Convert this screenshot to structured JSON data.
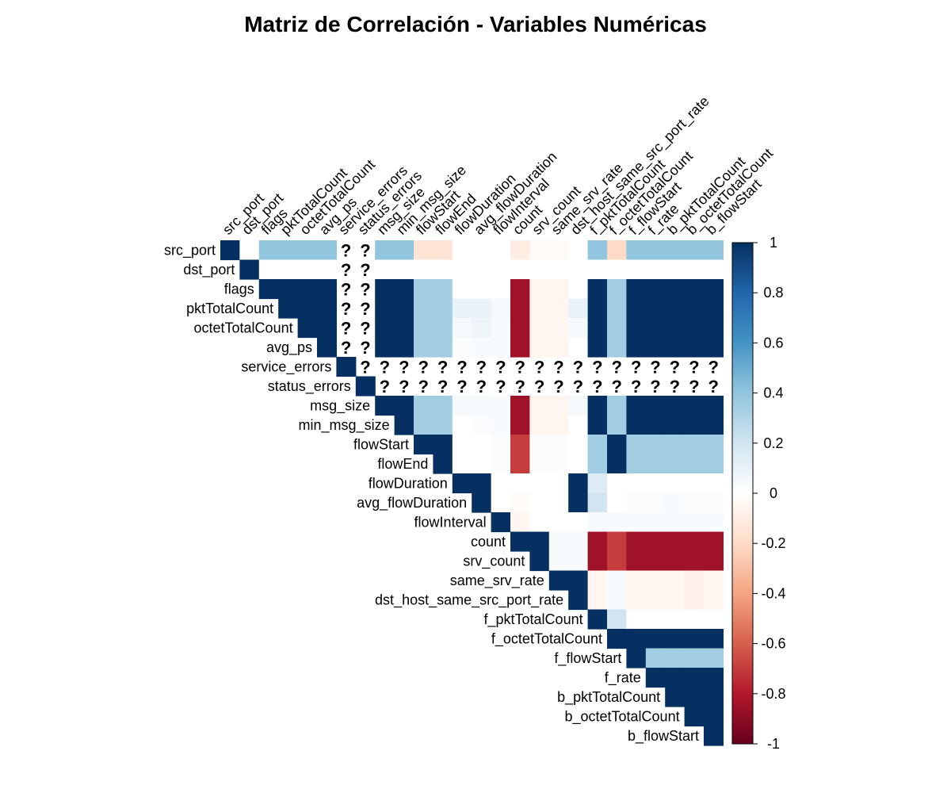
{
  "chart_data": {
    "type": "heatmap",
    "title": "Matriz de Correlación - Variables Numéricas",
    "layout": "upper-triangle",
    "missing_symbol": "?",
    "variables": [
      "src_port",
      "dst_port",
      "flags",
      "pktTotalCount",
      "octetTotalCount",
      "avg_ps",
      "service_errors",
      "status_errors",
      "msg_size",
      "min_msg_size",
      "flowStart",
      "flowEnd",
      "flowDuration",
      "avg_flowDuration",
      "flowInterval",
      "count",
      "srv_count",
      "same_srv_rate",
      "dst_host_same_src_port_rate",
      "f_pktTotalCount",
      "f_octetTotalCount",
      "f_flowStart",
      "f_rate",
      "b_pktTotalCount",
      "b_octetTotalCount",
      "b_flowStart"
    ],
    "matrix": [
      [
        1,
        0,
        0.4,
        0.4,
        0.4,
        0.4,
        null,
        null,
        0.4,
        0.4,
        -0.15,
        -0.15,
        0,
        0,
        0,
        -0.1,
        -0.03,
        -0.03,
        0,
        0.4,
        -0.2,
        0.4,
        0.4,
        0.4,
        0.4,
        0.4
      ],
      [
        0,
        1,
        0,
        0,
        0,
        0,
        null,
        null,
        0,
        0,
        0,
        0,
        0,
        0,
        0,
        0,
        0,
        0,
        0,
        0,
        0,
        0,
        0,
        0,
        0,
        0
      ],
      [
        0.4,
        0,
        1,
        1,
        1,
        1,
        null,
        null,
        1,
        1,
        0.35,
        0.35,
        0,
        0,
        0,
        -0.85,
        -0.05,
        -0.05,
        0,
        1,
        0.35,
        1,
        1,
        1,
        1,
        1
      ],
      [
        0.4,
        0,
        1,
        1,
        1,
        1,
        null,
        null,
        1,
        1,
        0.35,
        0.35,
        0.1,
        0.1,
        0.05,
        -0.85,
        -0.05,
        -0.05,
        0.1,
        1,
        0.35,
        1,
        1,
        1,
        1,
        1
      ],
      [
        0.4,
        0,
        1,
        1,
        1,
        1,
        null,
        null,
        1,
        1,
        0.35,
        0.35,
        0.05,
        0.08,
        0.03,
        -0.85,
        -0.05,
        -0.05,
        0.05,
        1,
        0.35,
        1,
        1,
        1,
        1,
        1
      ],
      [
        0.4,
        0,
        1,
        1,
        1,
        1,
        null,
        null,
        1,
        1,
        0.35,
        0.35,
        0.02,
        0.03,
        0.03,
        -0.85,
        -0.05,
        -0.05,
        0,
        1,
        0.35,
        1,
        1,
        1,
        1,
        1
      ],
      [
        null,
        null,
        null,
        null,
        null,
        null,
        1,
        null,
        null,
        null,
        null,
        null,
        null,
        null,
        null,
        null,
        null,
        null,
        null,
        null,
        null,
        null,
        null,
        null,
        null,
        null
      ],
      [
        null,
        null,
        null,
        null,
        null,
        null,
        null,
        1,
        null,
        null,
        null,
        null,
        null,
        null,
        null,
        null,
        null,
        null,
        null,
        null,
        null,
        null,
        null,
        null,
        null,
        null
      ],
      [
        0.4,
        0,
        1,
        1,
        1,
        1,
        null,
        null,
        1,
        1,
        0.35,
        0.35,
        0.05,
        0.05,
        0.03,
        -0.85,
        -0.05,
        -0.05,
        0.05,
        1,
        0.35,
        1,
        1,
        1,
        1,
        1
      ],
      [
        0.4,
        0,
        1,
        1,
        1,
        1,
        null,
        null,
        1,
        1,
        0.35,
        0.35,
        0,
        0.02,
        0.03,
        -0.85,
        -0.05,
        -0.05,
        0,
        1,
        0.35,
        1,
        1,
        1,
        1,
        1
      ],
      [
        -0.15,
        0,
        0.35,
        0.35,
        0.35,
        0.35,
        null,
        null,
        0.35,
        0.35,
        1,
        1,
        0,
        0,
        0.02,
        -0.7,
        0.02,
        0.02,
        0,
        0.35,
        1,
        0.35,
        0.35,
        0.35,
        0.35,
        0.35
      ],
      [
        -0.15,
        0,
        0.35,
        0.35,
        0.35,
        0.35,
        null,
        null,
        0.35,
        0.35,
        1,
        1,
        0,
        0,
        0.02,
        -0.7,
        0.02,
        0.02,
        0,
        0.35,
        1,
        0.35,
        0.35,
        0.35,
        0.35,
        0.35
      ],
      [
        0,
        0,
        0,
        0.1,
        0.05,
        0.02,
        null,
        null,
        0.05,
        0,
        0,
        0,
        1,
        1,
        0,
        0,
        0,
        0,
        1,
        0.15,
        0,
        0,
        0,
        0,
        0,
        0
      ],
      [
        0,
        0,
        0,
        0.1,
        0.08,
        0.03,
        null,
        null,
        0.05,
        0.02,
        0,
        0,
        1,
        1,
        0,
        -0.02,
        0,
        0,
        1,
        0.2,
        0,
        0.02,
        0.02,
        0.03,
        0.02,
        0.02
      ],
      [
        0,
        0,
        0,
        0.05,
        0.03,
        0.03,
        null,
        null,
        0.03,
        0.03,
        0.02,
        0.02,
        0,
        0,
        1,
        -0.05,
        0,
        0,
        0,
        0.03,
        0.03,
        0.03,
        0.03,
        0.03,
        0.03,
        0.03
      ],
      [
        -0.1,
        0,
        -0.85,
        -0.85,
        -0.85,
        -0.85,
        null,
        null,
        -0.85,
        -0.85,
        -0.7,
        -0.7,
        0,
        -0.02,
        -0.05,
        1,
        1,
        0.03,
        0.03,
        -0.85,
        -0.7,
        -0.85,
        -0.85,
        -0.85,
        -0.85,
        -0.85
      ],
      [
        -0.03,
        0,
        -0.05,
        -0.05,
        -0.05,
        -0.05,
        null,
        null,
        -0.05,
        -0.05,
        0.02,
        0.02,
        0,
        0,
        0,
        1,
        1,
        0.03,
        0.03,
        -0.85,
        -0.7,
        -0.85,
        -0.85,
        -0.85,
        -0.85,
        -0.85
      ],
      [
        -0.03,
        0,
        -0.05,
        -0.05,
        -0.05,
        -0.05,
        null,
        null,
        -0.05,
        -0.05,
        0.02,
        0.02,
        0,
        0,
        0,
        0.03,
        0.03,
        1,
        1,
        -0.05,
        0.03,
        -0.05,
        -0.05,
        -0.05,
        -0.07,
        -0.05
      ],
      [
        0,
        0,
        0,
        0.1,
        0.05,
        0,
        null,
        null,
        0.05,
        0,
        0,
        0,
        1,
        1,
        0,
        0.03,
        0.03,
        1,
        1,
        -0.05,
        0.03,
        -0.05,
        -0.05,
        -0.05,
        -0.07,
        -0.05
      ],
      [
        0.4,
        0,
        1,
        1,
        1,
        1,
        null,
        null,
        1,
        1,
        0.35,
        0.35,
        0.15,
        0.2,
        0.03,
        -0.85,
        -0.85,
        -0.05,
        -0.05,
        1,
        0.2,
        0,
        0,
        0,
        0,
        0
      ],
      [
        -0.2,
        0,
        0.35,
        0.35,
        0.35,
        0.35,
        null,
        null,
        0.35,
        0.35,
        1,
        1,
        0,
        0,
        0.03,
        -0.7,
        -0.7,
        0.03,
        0.03,
        0.2,
        1,
        1,
        1,
        1,
        1,
        1
      ],
      [
        0.4,
        0,
        1,
        1,
        1,
        1,
        null,
        null,
        1,
        1,
        0.35,
        0.35,
        0,
        0.02,
        0.03,
        -0.85,
        -0.85,
        -0.05,
        -0.05,
        0,
        1,
        1,
        0.35,
        0.35,
        0.35,
        0.35
      ],
      [
        0.4,
        0,
        1,
        1,
        1,
        1,
        null,
        null,
        1,
        1,
        0.35,
        0.35,
        0,
        0.02,
        0.03,
        -0.85,
        -0.85,
        -0.05,
        -0.05,
        0,
        1,
        0.35,
        1,
        1,
        1,
        1
      ],
      [
        0.4,
        0,
        1,
        1,
        1,
        1,
        null,
        null,
        1,
        1,
        0.35,
        0.35,
        0,
        0.03,
        0.03,
        -0.85,
        -0.85,
        -0.05,
        -0.05,
        0,
        1,
        0.35,
        1,
        1,
        1,
        1
      ],
      [
        0.4,
        0,
        1,
        1,
        1,
        1,
        null,
        null,
        1,
        1,
        0.35,
        0.35,
        0,
        0.02,
        0.03,
        -0.85,
        -0.85,
        -0.07,
        -0.07,
        0,
        1,
        0.35,
        1,
        1,
        1,
        1
      ],
      [
        0.4,
        0,
        1,
        1,
        1,
        1,
        null,
        null,
        1,
        1,
        0.35,
        0.35,
        0,
        0.02,
        0.03,
        -0.85,
        -0.85,
        -0.05,
        -0.05,
        0,
        1,
        0.35,
        1,
        1,
        1,
        1
      ]
    ],
    "colorbar": {
      "ticks": [
        "1",
        "0.8",
        "0.6",
        "0.4",
        "0.2",
        "0",
        "-0.2",
        "-0.4",
        "-0.6",
        "-0.8",
        "-1"
      ],
      "range": [
        -1,
        1
      ],
      "palette": [
        "#67001F",
        "#B2182B",
        "#D6604D",
        "#F4A582",
        "#FDDBC7",
        "#FFFFFF",
        "#D1E5F0",
        "#92C5DE",
        "#4393C3",
        "#2166AC",
        "#053061"
      ]
    }
  }
}
